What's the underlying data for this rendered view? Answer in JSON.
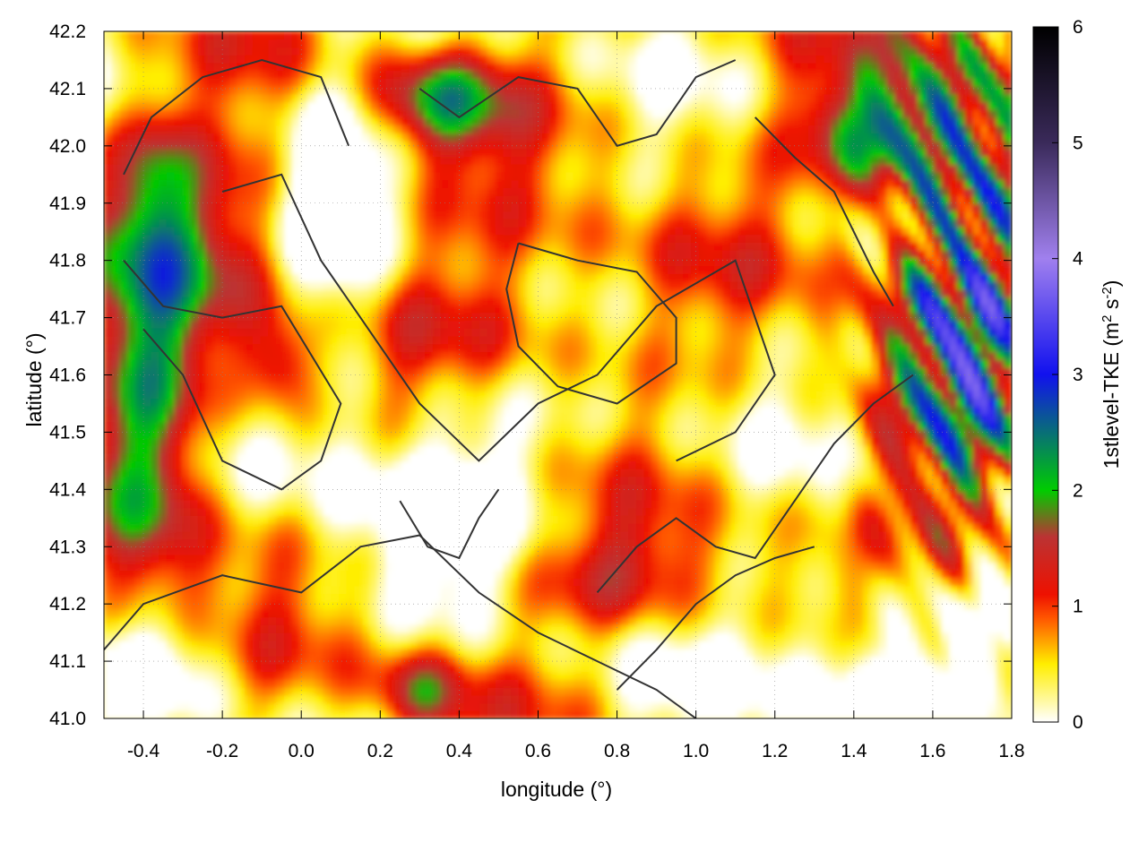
{
  "chart_data": {
    "type": "heatmap",
    "title": "",
    "xlabel": "longitude (°)",
    "ylabel": "latitude (°)",
    "colorbar_label": "1stlevel-TKE (m² s⁻²)",
    "colorbar_label_parts": {
      "base": "1stlevel-TKE (m",
      "exp1": "2",
      "mid": " s",
      "exp2": "-2",
      "end": ")"
    },
    "xlim": [
      -0.5,
      1.8
    ],
    "ylim": [
      41.0,
      42.2
    ],
    "zlim": [
      0,
      6
    ],
    "x_ticks": [
      -0.4,
      -0.2,
      0.0,
      0.2,
      0.4,
      0.6,
      0.8,
      1.0,
      1.2,
      1.4,
      1.6,
      1.8
    ],
    "x_tick_labels": [
      "-0.4",
      "-0.2",
      "0.0",
      "0.2",
      "0.4",
      "0.6",
      "0.8",
      "1.0",
      "1.2",
      "1.4",
      "1.6",
      "1.8"
    ],
    "y_ticks": [
      41.0,
      41.1,
      41.2,
      41.3,
      41.4,
      41.5,
      41.6,
      41.7,
      41.8,
      41.9,
      42.0,
      42.1,
      42.2
    ],
    "y_tick_labels": [
      "41.0",
      "41.1",
      "41.2",
      "41.3",
      "41.4",
      "41.5",
      "41.6",
      "41.7",
      "41.8",
      "41.9",
      "42.0",
      "42.1",
      "42.2"
    ],
    "colorbar_ticks": [
      0,
      1,
      2,
      3,
      4,
      5,
      6
    ],
    "colorbar_tick_labels": [
      "0",
      "1",
      "2",
      "3",
      "4",
      "5",
      "6"
    ],
    "colormap": [
      {
        "v": 0.0,
        "color": "#ffffff"
      },
      {
        "v": 0.5,
        "color": "#ffee00"
      },
      {
        "v": 0.9,
        "color": "#ff5500"
      },
      {
        "v": 1.1,
        "color": "#ee1100"
      },
      {
        "v": 1.6,
        "color": "#bb3333"
      },
      {
        "v": 2.0,
        "color": "#00cc00"
      },
      {
        "v": 3.0,
        "color": "#1111ee"
      },
      {
        "v": 4.0,
        "color": "#a080ee"
      },
      {
        "v": 5.0,
        "color": "#3a2a5a"
      },
      {
        "v": 6.0,
        "color": "#000000"
      }
    ],
    "grid": true,
    "grid_style": "dotted",
    "contours": true,
    "contour_color": "#333333"
  }
}
